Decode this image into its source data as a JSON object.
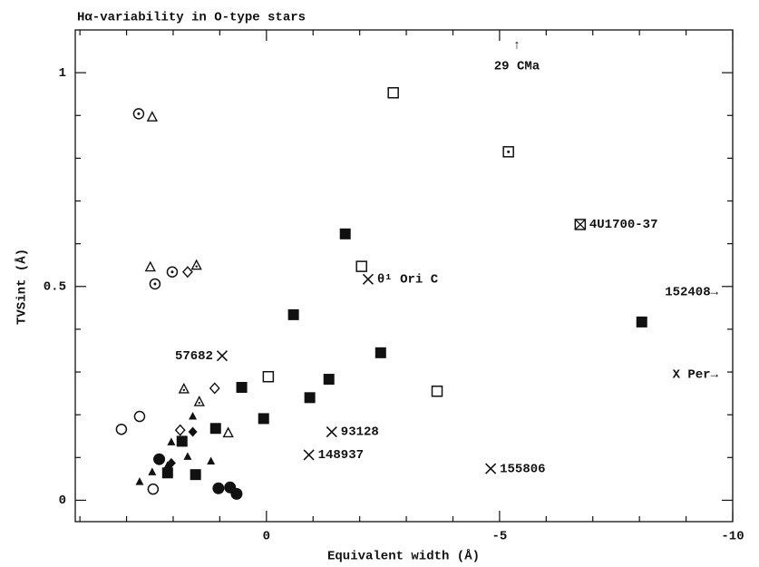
{
  "chart_data": {
    "type": "scatter",
    "title": "Hα-variability in O-type stars",
    "x_label": "Equivalent width (Å)",
    "y_label": "TVSint (Å)",
    "xlim": [
      4.1,
      -10
    ],
    "ylim": [
      -0.05,
      1.1
    ],
    "xticks": [
      0,
      -5,
      -10
    ],
    "yticks": [
      0,
      0.5,
      1
    ],
    "x_minor_ticks": [
      4,
      3,
      2,
      1,
      -1,
      -2,
      -3,
      -4,
      -6,
      -7,
      -8,
      -9
    ],
    "y_minor_ticks": [
      0.1,
      0.2,
      0.3,
      0.4,
      0.6,
      0.7,
      0.8,
      0.9
    ],
    "series": [
      {
        "marker": "circle-filled",
        "color": "#111",
        "x": [
          1.03,
          0.78,
          0.64,
          2.3
        ],
        "values": [
          0.028,
          0.03,
          0.015,
          0.096
        ]
      },
      {
        "marker": "circle-open",
        "color": "#111",
        "x": [
          3.11,
          2.72,
          2.43
        ],
        "values": [
          0.166,
          0.196,
          0.026
        ]
      },
      {
        "marker": "circle-dot",
        "color": "#111",
        "x": [
          2.74,
          2.39,
          2.02
        ],
        "values": [
          0.904,
          0.506,
          0.534
        ]
      },
      {
        "marker": "triangle-open",
        "color": "#111",
        "x": [
          2.45,
          2.49,
          0.82
        ],
        "values": [
          0.896,
          0.545,
          0.157
        ]
      },
      {
        "marker": "triangle-dot",
        "color": "#111",
        "x": [
          1.5,
          1.77,
          1.44
        ],
        "values": [
          0.549,
          0.26,
          0.23
        ]
      },
      {
        "marker": "triangle-filled",
        "color": "#111",
        "x": [
          2.12,
          2.45,
          2.72,
          2.04,
          1.58,
          1.69,
          1.19
        ],
        "values": [
          0.081,
          0.066,
          0.043,
          0.136,
          0.196,
          0.102,
          0.091
        ]
      },
      {
        "marker": "diamond-open",
        "color": "#111",
        "x": [
          1.69,
          1.11,
          1.85
        ],
        "values": [
          0.534,
          0.262,
          0.164
        ]
      },
      {
        "marker": "diamond-filled",
        "color": "#111",
        "x": [
          1.58,
          2.04
        ],
        "values": [
          0.16,
          0.087
        ]
      },
      {
        "marker": "square-filled",
        "color": "#111",
        "x": [
          1.81,
          1.52,
          1.09,
          2.12,
          0.53,
          0.06,
          -0.58,
          -0.93,
          -1.34,
          -1.69,
          -2.45,
          -8.05
        ],
        "values": [
          0.138,
          0.06,
          0.168,
          0.064,
          0.264,
          0.191,
          0.434,
          0.24,
          0.283,
          0.623,
          0.345,
          0.417
        ]
      },
      {
        "marker": "square-open",
        "color": "#111",
        "x": [
          -2.72,
          -2.04,
          -0.04,
          -3.66
        ],
        "values": [
          0.953,
          0.547,
          0.289,
          0.255
        ]
      },
      {
        "marker": "square-dot",
        "color": "#111",
        "x": [
          -5.19
        ],
        "values": [
          0.815
        ]
      },
      {
        "marker": "square-x",
        "color": "#111",
        "x": [
          -6.73
        ],
        "values": [
          0.645
        ],
        "labels": [
          "4U1700-37"
        ]
      },
      {
        "marker": "cross",
        "color": "#111",
        "x": [
          0.95,
          -2.18,
          -1.4,
          -0.91,
          -4.81
        ],
        "values": [
          0.338,
          0.517,
          0.16,
          0.106,
          0.074
        ],
        "labels": [
          "57682",
          "θ¹ Ori C",
          "93128",
          "148937",
          "155806"
        ]
      }
    ],
    "annotations": [
      "29 CMa",
      "152408→",
      "X Per→"
    ]
  }
}
